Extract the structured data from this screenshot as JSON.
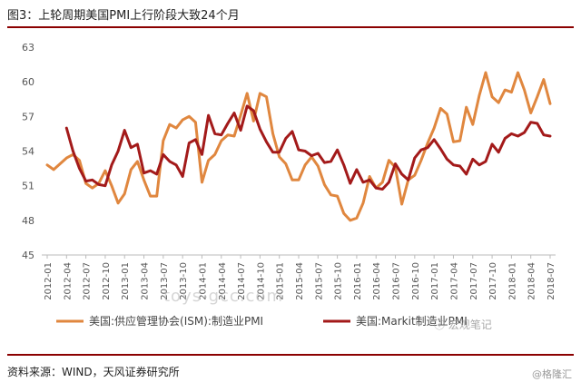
{
  "header": {
    "title": "图3：上轮周期美国PMI上行阶段大致24个月"
  },
  "footer": {
    "source": "资料来源：WIND，天风证券研究所",
    "corner_watermark": "@格隆汇"
  },
  "watermarks": {
    "center": "toys-gcc.com",
    "legend_overlay": "ⓘ 宏观笔记"
  },
  "chart_data": {
    "type": "line",
    "title": "",
    "xlabel": "",
    "ylabel": "",
    "ylim": [
      45,
      63
    ],
    "yticks": [
      45,
      48,
      51,
      54,
      57,
      60,
      63
    ],
    "grid": false,
    "legend_position": "bottom",
    "x_tick_labels": [
      "2012-01",
      "2012-04",
      "2012-07",
      "2012-10",
      "2013-01",
      "2013-04",
      "2013-07",
      "2013-10",
      "2014-01",
      "2014-04",
      "2014-07",
      "2014-10",
      "2015-01",
      "2015-04",
      "2015-07",
      "2015-10",
      "2016-01",
      "2016-04",
      "2016-07",
      "2016-10",
      "2017-01",
      "2017-04",
      "2017-07",
      "2017-10",
      "2018-01",
      "2018-04",
      "2018-07"
    ],
    "x": [
      "2012-01",
      "2012-02",
      "2012-03",
      "2012-04",
      "2012-05",
      "2012-06",
      "2012-07",
      "2012-08",
      "2012-09",
      "2012-10",
      "2012-11",
      "2012-12",
      "2013-01",
      "2013-02",
      "2013-03",
      "2013-04",
      "2013-05",
      "2013-06",
      "2013-07",
      "2013-08",
      "2013-09",
      "2013-10",
      "2013-11",
      "2013-12",
      "2014-01",
      "2014-02",
      "2014-03",
      "2014-04",
      "2014-05",
      "2014-06",
      "2014-07",
      "2014-08",
      "2014-09",
      "2014-10",
      "2014-11",
      "2014-12",
      "2015-01",
      "2015-02",
      "2015-03",
      "2015-04",
      "2015-05",
      "2015-06",
      "2015-07",
      "2015-08",
      "2015-09",
      "2015-10",
      "2015-11",
      "2015-12",
      "2016-01",
      "2016-02",
      "2016-03",
      "2016-04",
      "2016-05",
      "2016-06",
      "2016-07",
      "2016-08",
      "2016-09",
      "2016-10",
      "2016-11",
      "2016-12",
      "2017-01",
      "2017-02",
      "2017-03",
      "2017-04",
      "2017-05",
      "2017-06",
      "2017-07",
      "2017-08",
      "2017-09",
      "2017-10",
      "2017-11",
      "2017-12",
      "2018-01",
      "2018-02",
      "2018-03",
      "2018-04",
      "2018-05",
      "2018-06",
      "2018-07"
    ],
    "series": [
      {
        "name": "美国:供应管理协会(ISM):制造业PMI",
        "color": "#e0873f",
        "values": [
          52.8,
          52.4,
          52.9,
          53.4,
          53.7,
          53.2,
          51.2,
          50.8,
          51.2,
          52.3,
          51.0,
          49.5,
          50.3,
          52.4,
          53.1,
          51.5,
          50.1,
          50.1,
          54.9,
          56.3,
          56.0,
          56.7,
          57.0,
          56.5,
          51.3,
          53.2,
          53.7,
          54.9,
          55.4,
          55.3,
          57.1,
          59.0,
          56.6,
          59.0,
          58.7,
          55.5,
          53.5,
          52.9,
          51.5,
          51.5,
          52.8,
          53.5,
          52.7,
          51.1,
          50.2,
          50.1,
          48.6,
          48.0,
          48.2,
          49.5,
          51.8,
          50.8,
          51.3,
          53.2,
          52.6,
          49.4,
          51.5,
          51.9,
          53.2,
          54.7,
          56.0,
          57.7,
          57.2,
          54.8,
          54.9,
          57.8,
          56.3,
          58.8,
          60.8,
          58.7,
          58.2,
          59.3,
          59.1,
          60.8,
          59.3,
          57.3,
          58.7,
          60.2,
          58.1
        ]
      },
      {
        "name": "美国:Markit制造业PMI",
        "color": "#a31a1a",
        "values": [
          null,
          null,
          null,
          56.0,
          54.0,
          52.5,
          51.4,
          51.5,
          51.1,
          51.0,
          52.8,
          54.0,
          55.8,
          54.3,
          54.6,
          52.1,
          52.3,
          52.0,
          53.7,
          53.1,
          52.8,
          51.8,
          54.7,
          55.0,
          53.7,
          57.1,
          55.5,
          55.4,
          56.4,
          57.3,
          55.8,
          57.9,
          57.5,
          55.9,
          54.8,
          53.9,
          53.9,
          55.1,
          55.7,
          54.1,
          54.0,
          53.6,
          53.8,
          53.0,
          53.1,
          54.1,
          52.8,
          51.2,
          52.4,
          51.3,
          51.5,
          50.8,
          50.7,
          51.3,
          52.9,
          52.0,
          51.5,
          53.4,
          54.1,
          54.3,
          55.0,
          54.2,
          53.3,
          52.8,
          52.7,
          52.0,
          53.3,
          52.8,
          53.1,
          54.6,
          53.9,
          55.1,
          55.5,
          55.3,
          55.6,
          56.5,
          56.4,
          55.4,
          55.3
        ]
      }
    ]
  }
}
